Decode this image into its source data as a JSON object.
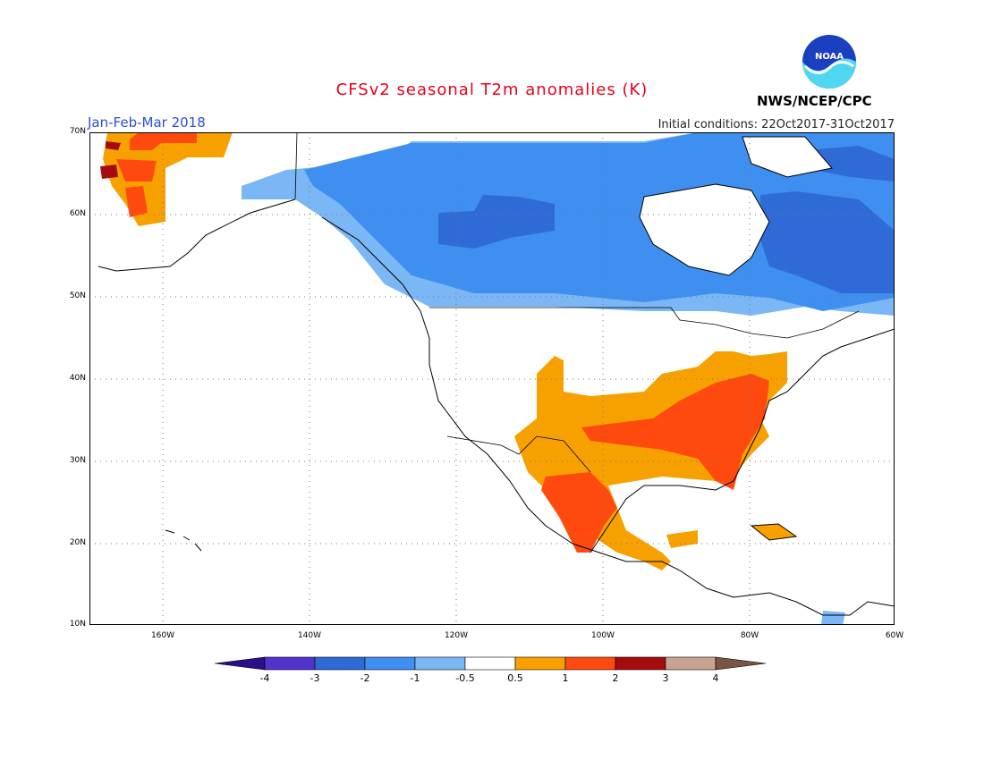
{
  "header": {
    "title": "CFSv2 seasonal T2m anomalies (K)",
    "period": "Jan-Feb-Mar 2018",
    "initial_conditions": "Initial conditions: 22Oct2017-31Oct2017",
    "agency": "NWS/NCEP/CPC",
    "logo_text": "NOAA"
  },
  "map": {
    "lat_labels": [
      "70N",
      "60N",
      "50N",
      "40N",
      "30N",
      "20N",
      "10N"
    ],
    "lon_labels": [
      "160W",
      "140W",
      "120W",
      "100W",
      "80W",
      "60W"
    ]
  },
  "colorbar": {
    "labels": [
      "-4",
      "-3",
      "-2",
      "-1",
      "-0.5",
      "0.5",
      "1",
      "2",
      "3",
      "4"
    ],
    "colors": [
      "#2a0f8a",
      "#5233cc",
      "#2f6bd6",
      "#3f8ff0",
      "#7bb6f5",
      "#ffffff",
      "#f7a100",
      "#ff4a0f",
      "#a50c0c",
      "#caa493",
      "#7a5444"
    ]
  }
}
